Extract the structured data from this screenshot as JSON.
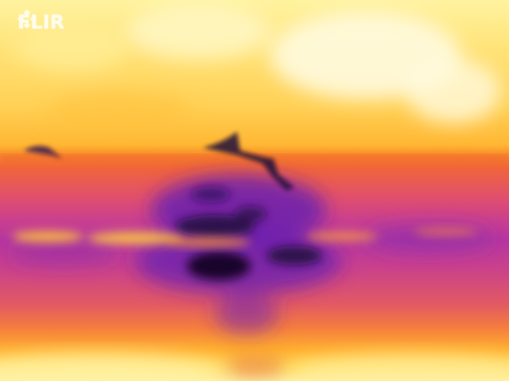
{
  "brand": {
    "logo_text": "FLIR",
    "logo_icon": "flir-diamond-icon"
  },
  "colors": {
    "palette": "iron",
    "hot": "#fff3a0",
    "warm": "#ffb733",
    "mid": "#e04f6e",
    "cool": "#b536a0",
    "cold": "#2a0a4a"
  }
}
